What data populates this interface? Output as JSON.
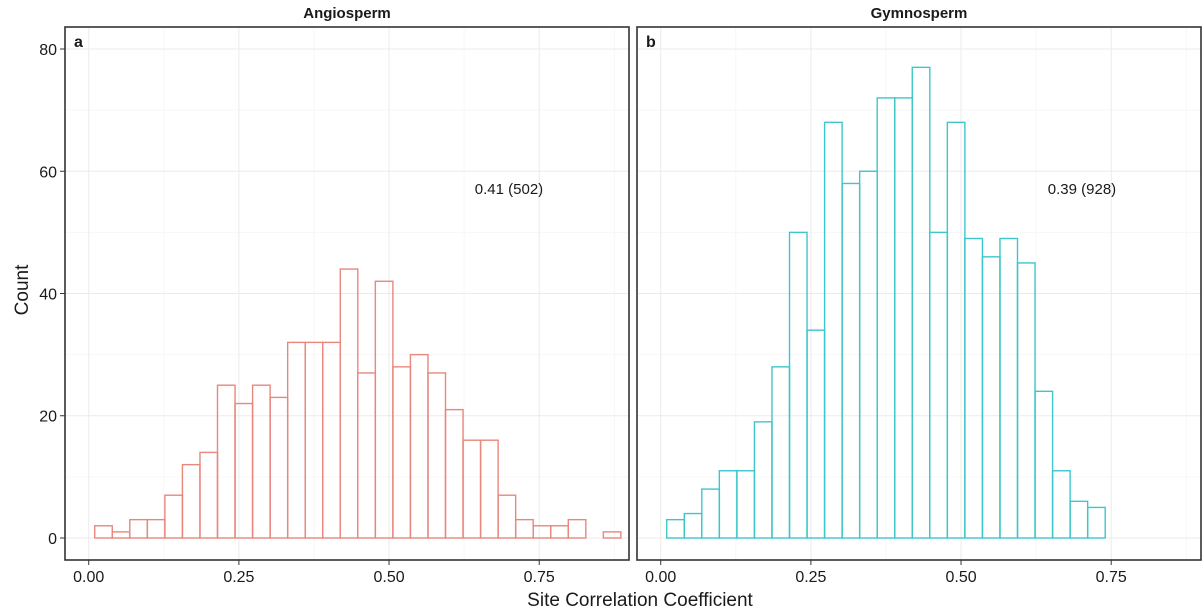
{
  "chart_data": {
    "type": "histogram",
    "xlabel": "Site Correlation Coefficient",
    "ylabel": "Count",
    "ylim": [
      0,
      80
    ],
    "y_ticks": [
      0,
      20,
      40,
      60,
      80
    ],
    "y_tick_labels": [
      "0",
      "20",
      "40",
      "60",
      "80"
    ],
    "x_ticks": [
      0,
      0.25,
      0.5,
      0.75
    ],
    "x_tick_labels": [
      "0.00",
      "0.25",
      "0.50",
      "0.75"
    ],
    "bin_width": 0.0292,
    "x_range": [
      0.01,
      0.86
    ],
    "grid": true,
    "panels": [
      {
        "title": "Angiosperm",
        "tag": "a",
        "annotation": "0.41 (502)",
        "color": "#E8877E",
        "counts": [
          2,
          1,
          3,
          3,
          7,
          12,
          14,
          25,
          22,
          25,
          23,
          32,
          32,
          32,
          44,
          27,
          42,
          28,
          30,
          27,
          21,
          16,
          16,
          7,
          3,
          2,
          2,
          3,
          0,
          1
        ]
      },
      {
        "title": "Gymnosperm",
        "tag": "b",
        "annotation": "0.39 (928)",
        "color": "#3EC6CB",
        "counts": [
          3,
          4,
          8,
          11,
          11,
          19,
          28,
          50,
          34,
          68,
          58,
          60,
          72,
          72,
          77,
          50,
          68,
          49,
          46,
          49,
          45,
          24,
          11,
          6,
          5,
          0,
          0,
          0,
          0,
          0
        ]
      }
    ]
  }
}
